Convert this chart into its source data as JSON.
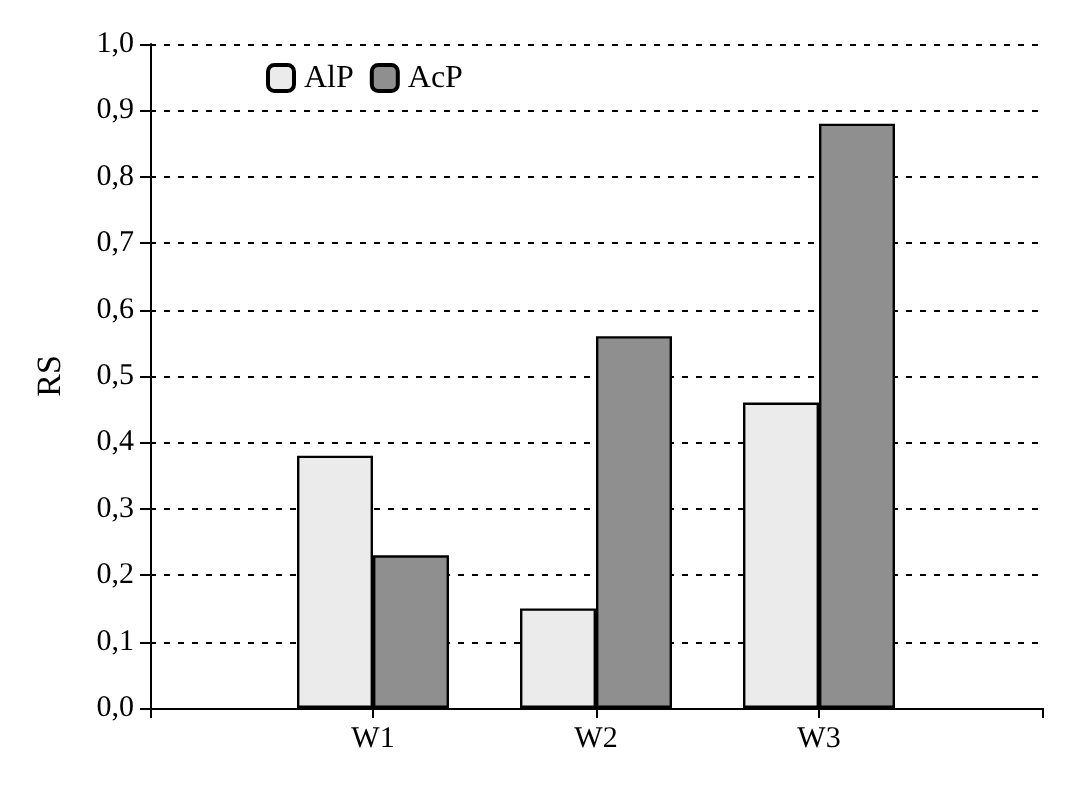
{
  "chart_data": {
    "type": "bar",
    "ylabel": "RS",
    "categories": [
      null,
      "W1",
      "W2",
      "W3",
      null
    ],
    "series": [
      {
        "name": "AlP",
        "color": "#ebebeb",
        "values": [
          null,
          0.38,
          0.15,
          0.46,
          null
        ]
      },
      {
        "name": "AcP",
        "color": "#8f8f8f",
        "values": [
          null,
          0.23,
          0.56,
          0.88,
          null
        ]
      }
    ],
    "ylim": [
      0,
      1
    ],
    "yticks": [
      {
        "value": 0,
        "label": "0,0"
      },
      {
        "value": 0.1,
        "label": "0,1"
      },
      {
        "value": 0.2,
        "label": "0,2"
      },
      {
        "value": 0.3,
        "label": "0,3"
      },
      {
        "value": 0.4,
        "label": "0,4"
      },
      {
        "value": 0.5,
        "label": "0,5"
      },
      {
        "value": 0.6,
        "label": "0,6"
      },
      {
        "value": 0.7,
        "label": "0,7"
      },
      {
        "value": 0.8,
        "label": "0,8"
      },
      {
        "value": 0.9,
        "label": "0,9"
      },
      {
        "value": 1,
        "label": "1,0"
      }
    ],
    "grid": "y",
    "legend": "top left"
  }
}
